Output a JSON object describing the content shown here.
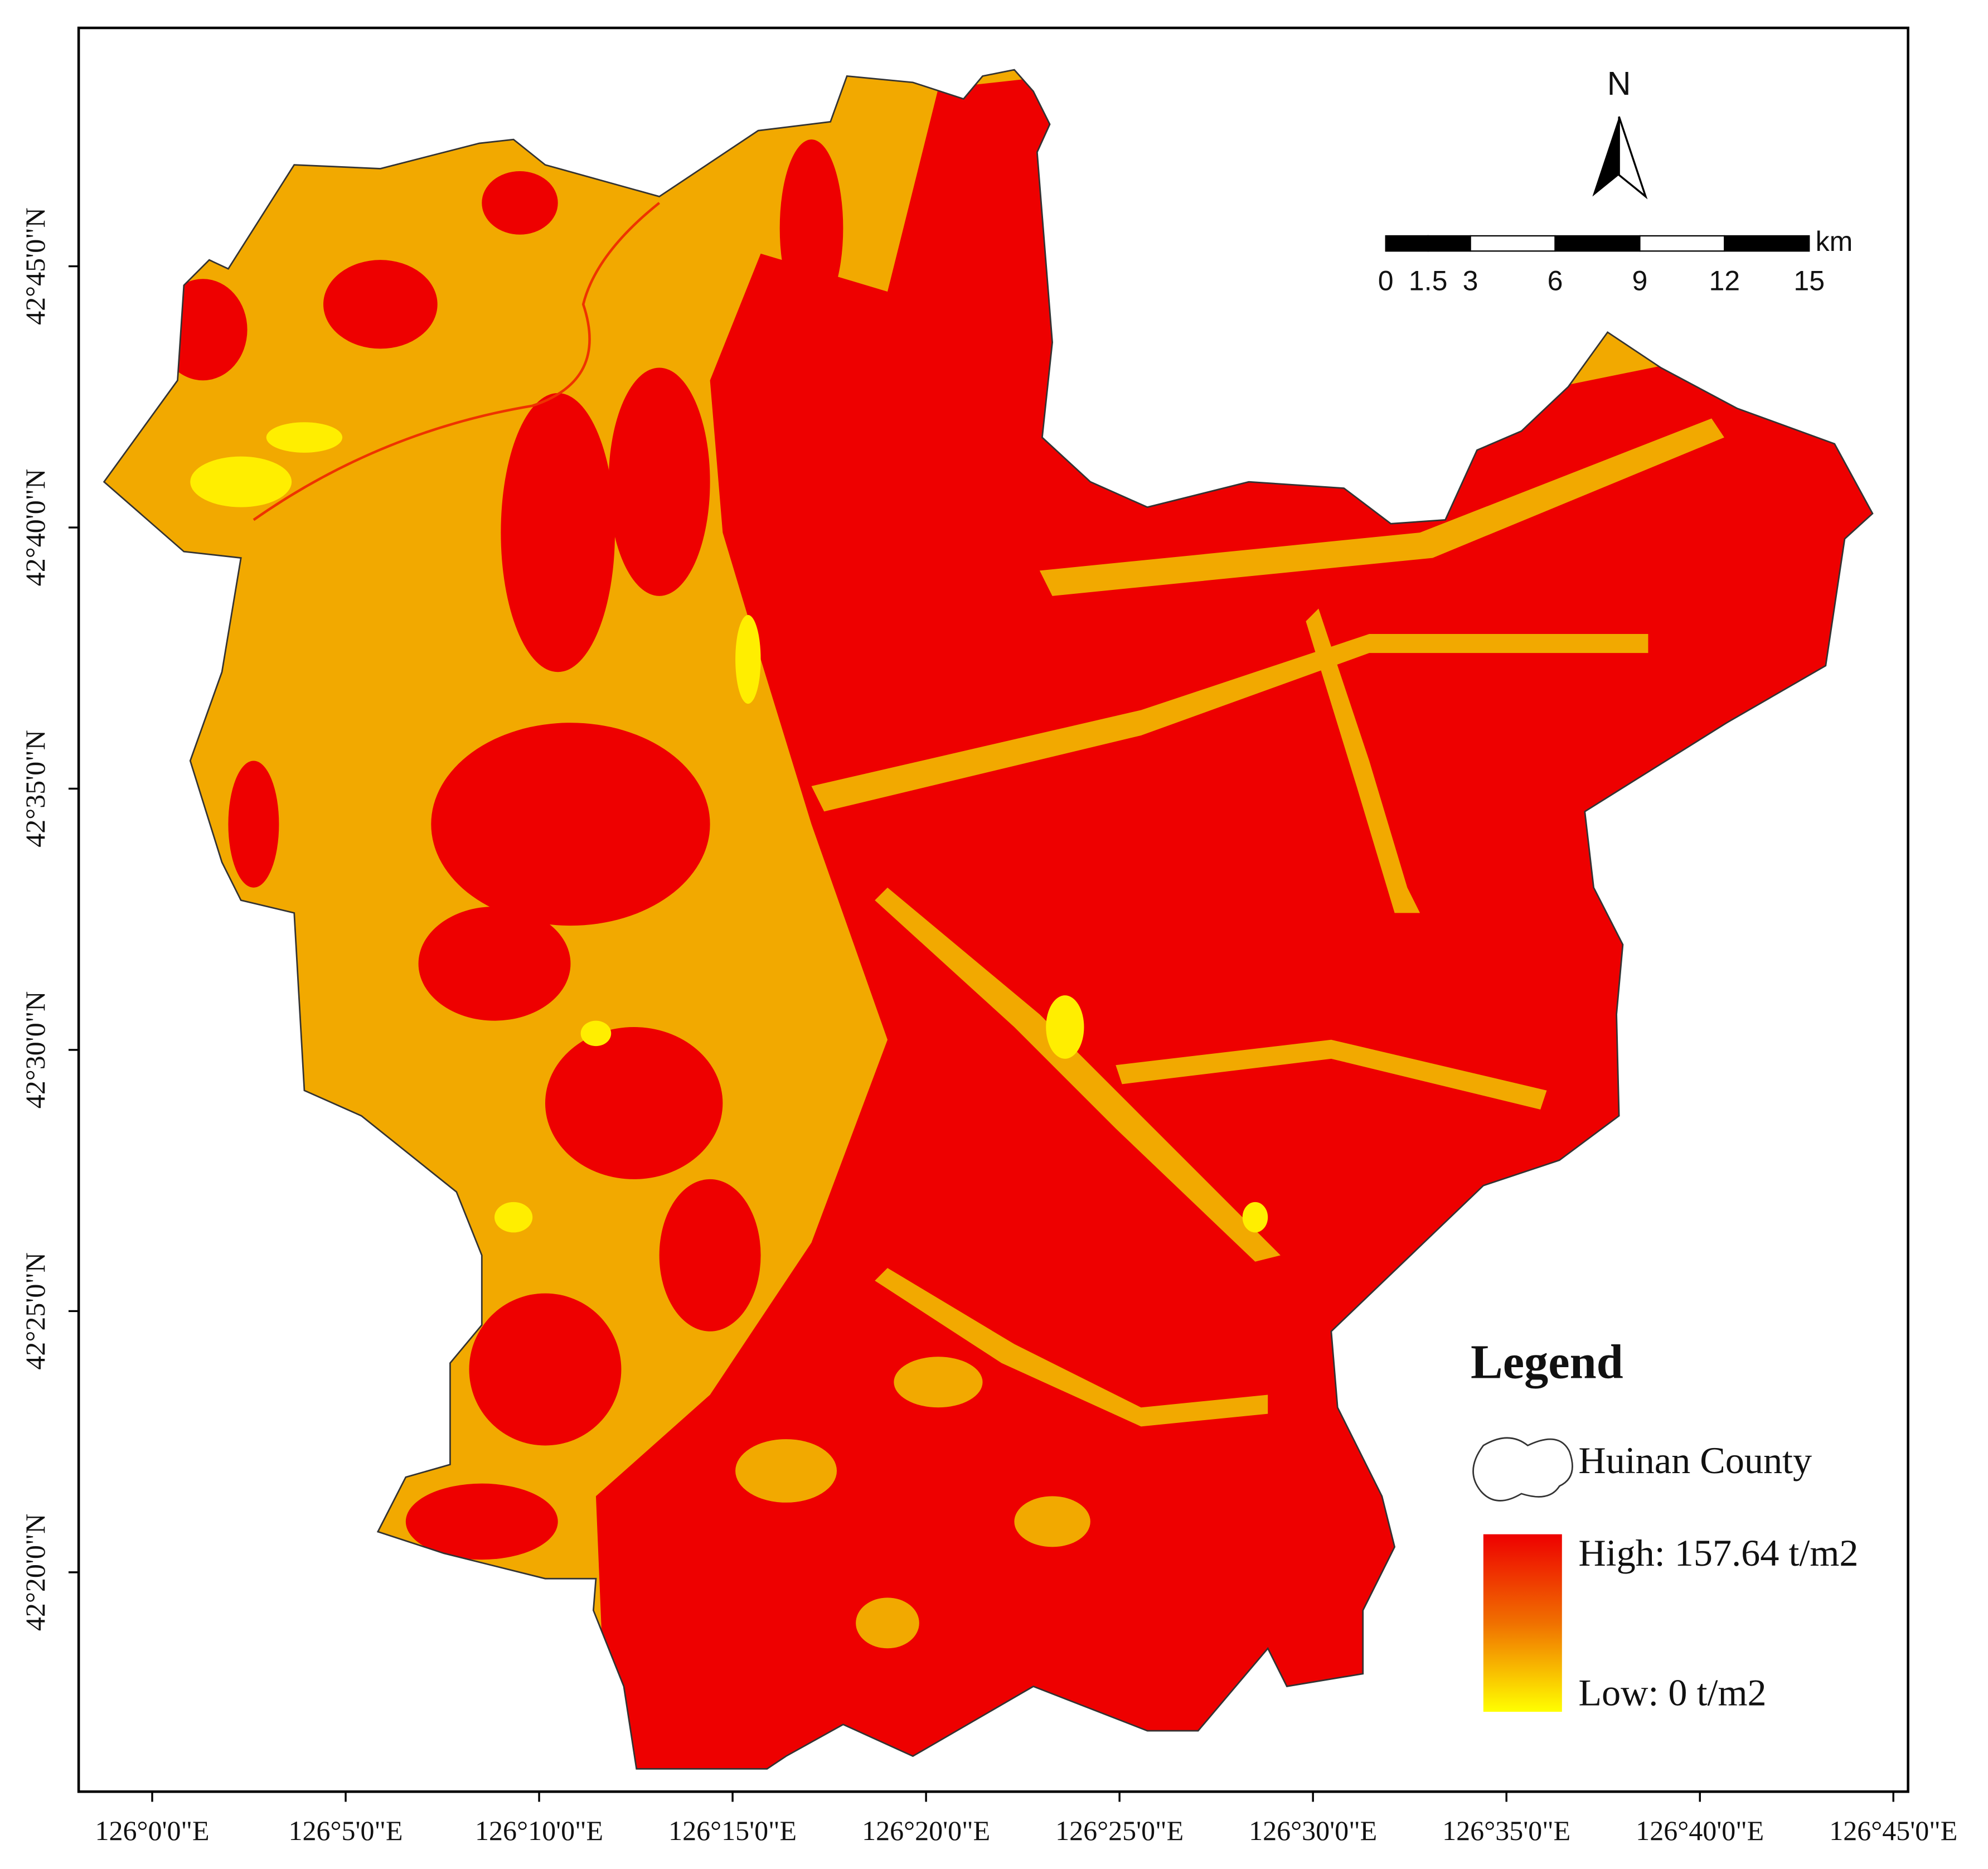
{
  "map": {
    "x_axis": {
      "tick_labels": [
        "126°0'0\"E",
        "126°5'0\"E",
        "126°10'0\"E",
        "126°15'0\"E",
        "126°20'0\"E",
        "126°25'0\"E",
        "126°30'0\"E",
        "126°35'0\"E",
        "126°40'0\"E",
        "126°45'0\"E"
      ]
    },
    "y_axis": {
      "tick_labels": [
        "42°45'0\"N",
        "42°40'0\"N",
        "42°35'0\"N",
        "42°30'0\"N",
        "42°25'0\"N",
        "42°20'0\"N"
      ]
    },
    "north_arrow": {
      "label": "N"
    },
    "scale_bar": {
      "unit": "km",
      "ticks": [
        0,
        1.5,
        3,
        6,
        9,
        12,
        15
      ]
    },
    "legend": {
      "title": "Legend",
      "items": [
        {
          "label": "Huinan County"
        },
        {
          "label": "High: 157.64 t/m2"
        },
        {
          "label": "Low: 0 t/m2"
        }
      ]
    }
  }
}
